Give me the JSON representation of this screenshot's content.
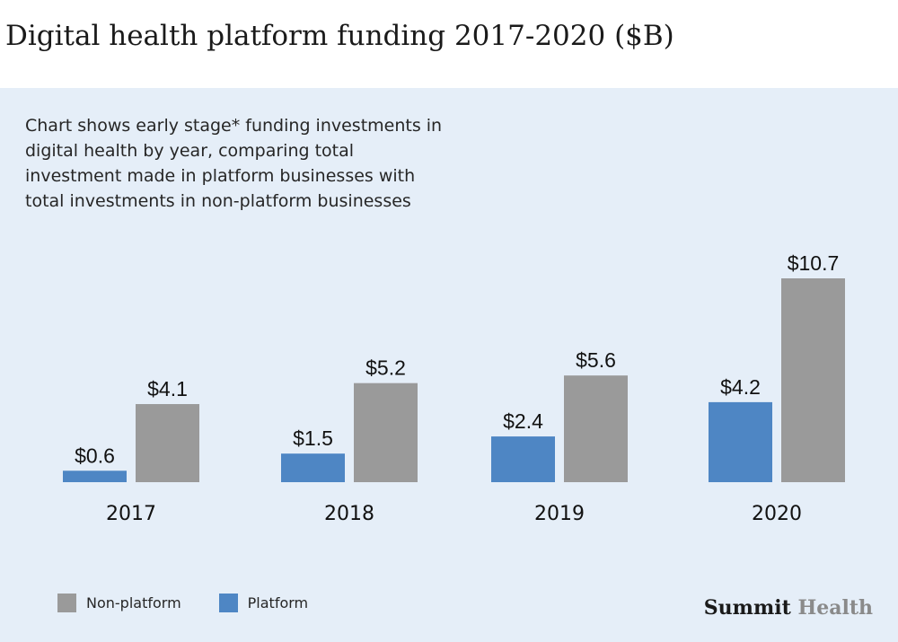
{
  "title": "Digital health platform funding 2017-2020 ($B)",
  "description": "Chart shows early stage* funding investments in digital health by year, comparing total investment made in platform businesses with total investments in non-platform businesses",
  "legend": {
    "non_platform": "Non-platform",
    "platform": "Platform"
  },
  "brand": {
    "part1": "Summit",
    "part2": "Health"
  },
  "colors": {
    "platform": "#4e86c4",
    "non_platform": "#9a9a9a",
    "panel_bg": "#e5eef8"
  },
  "chart_data": {
    "type": "bar",
    "categories": [
      "2017",
      "2018",
      "2019",
      "2020"
    ],
    "series": [
      {
        "name": "Platform",
        "values": [
          0.6,
          1.5,
          2.4,
          4.2
        ],
        "labels": [
          "$0.6",
          "$1.5",
          "$2.4",
          "$4.2"
        ]
      },
      {
        "name": "Non-platform",
        "values": [
          4.1,
          5.2,
          5.6,
          10.7
        ],
        "labels": [
          "$4.1",
          "$5.2",
          "$5.6",
          "$10.7"
        ]
      }
    ],
    "title": "Digital health platform funding 2017-2020 ($B)",
    "xlabel": "",
    "ylabel": "",
    "ylim": [
      0,
      10.7
    ],
    "grid": false,
    "legend_position": "bottom-left"
  }
}
